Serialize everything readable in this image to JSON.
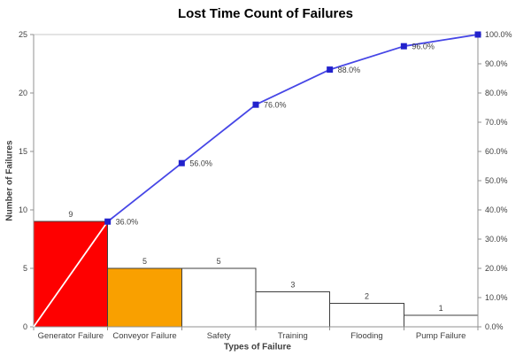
{
  "chart_data": {
    "type": "bar",
    "subtype": "pareto (bar + cumulative line)",
    "title": "Lost Time Count of Failures",
    "x_axis_title": "Types of Failure",
    "y_axis_title_left": "Number of Failures",
    "categories": [
      "Generator Failure",
      "Conveyor Failure",
      "Safety",
      "Training",
      "Flooding",
      "Pump Failure"
    ],
    "series": [
      {
        "name": "failure-count-bars",
        "type": "bar",
        "values": [
          9,
          5,
          5,
          3,
          2,
          1
        ],
        "value_labels": [
          "9",
          "5",
          "5",
          "3",
          "2",
          "1"
        ],
        "bar_fill_colors": [
          "#FE0000",
          "#F9A000",
          "#FFFFFF",
          "#FFFFFF",
          "#FFFFFF",
          "#FFFFFF"
        ]
      },
      {
        "name": "cumulative-percent-line",
        "type": "line",
        "cumulative_percent": [
          0,
          36,
          56,
          76,
          88,
          96,
          100
        ],
        "data_labels": [
          "36.0%",
          "56.0%",
          "76.0%",
          "88.0%",
          "96.0%"
        ],
        "line_color": "#4646E6",
        "first_segment_color": "#FFFFFF",
        "marker_color": "#2222CC"
      }
    ],
    "axes": {
      "left": {
        "min": 0,
        "max": 25,
        "step": 5,
        "tick_labels": [
          "0",
          "5",
          "10",
          "15",
          "20",
          "25"
        ]
      },
      "right": {
        "min": 0,
        "max": 100,
        "step": 10,
        "tick_labels": [
          "0.0%",
          "10.0%",
          "20.0%",
          "30.0%",
          "40.0%",
          "50.0%",
          "60.0%",
          "70.0%",
          "80.0%",
          "90.0%",
          "100.0%"
        ]
      }
    },
    "style": {
      "axis_color": "#909090",
      "plot_top_border_color": "#C8C8C8",
      "bar_border_color": "#3F3F3F",
      "label_color": "#3F3F3F",
      "title_color": "#000000"
    },
    "legend": "none",
    "grid": "off"
  }
}
